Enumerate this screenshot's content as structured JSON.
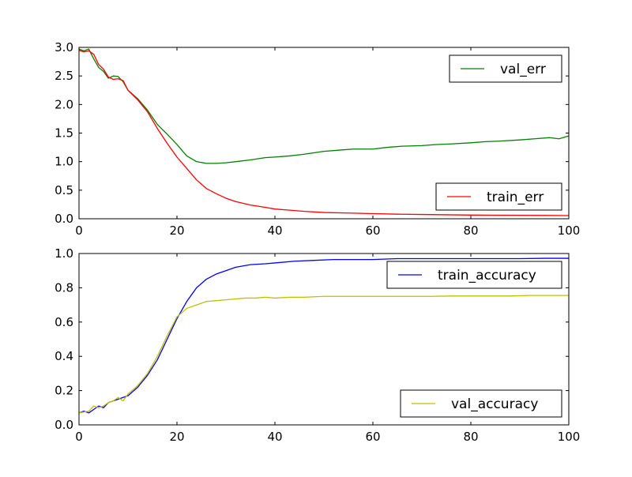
{
  "chart_data": [
    {
      "type": "line",
      "title": "",
      "xlabel": "",
      "ylabel": "",
      "xlim": [
        0,
        100
      ],
      "ylim": [
        0,
        3.0
      ],
      "xticks": [
        0,
        20,
        40,
        60,
        80,
        100
      ],
      "xtick_labels": [
        "0",
        "20",
        "40",
        "60",
        "80",
        "100"
      ],
      "yticks": [
        0,
        0.5,
        1.0,
        1.5,
        2.0,
        2.5,
        3.0
      ],
      "ytick_labels": [
        "0.0",
        "0.5",
        "1.0",
        "1.5",
        "2.0",
        "2.5",
        "3.0"
      ],
      "grid": false,
      "series": [
        {
          "name": "val_err",
          "color": "#008000",
          "legend_position": "top-right",
          "points": [
            [
              0,
              2.97
            ],
            [
              1,
              2.94
            ],
            [
              2,
              2.97
            ],
            [
              3,
              2.8
            ],
            [
              4,
              2.65
            ],
            [
              5,
              2.58
            ],
            [
              6,
              2.46
            ],
            [
              7,
              2.5
            ],
            [
              8,
              2.49
            ],
            [
              9,
              2.4
            ],
            [
              10,
              2.25
            ],
            [
              12,
              2.1
            ],
            [
              14,
              1.9
            ],
            [
              16,
              1.65
            ],
            [
              18,
              1.48
            ],
            [
              20,
              1.3
            ],
            [
              22,
              1.1
            ],
            [
              24,
              1.0
            ],
            [
              26,
              0.97
            ],
            [
              28,
              0.97
            ],
            [
              30,
              0.98
            ],
            [
              32,
              1.0
            ],
            [
              35,
              1.03
            ],
            [
              38,
              1.07
            ],
            [
              40,
              1.08
            ],
            [
              43,
              1.1
            ],
            [
              46,
              1.13
            ],
            [
              50,
              1.18
            ],
            [
              53,
              1.2
            ],
            [
              56,
              1.22
            ],
            [
              60,
              1.22
            ],
            [
              63,
              1.25
            ],
            [
              66,
              1.27
            ],
            [
              70,
              1.28
            ],
            [
              73,
              1.3
            ],
            [
              76,
              1.31
            ],
            [
              80,
              1.33
            ],
            [
              83,
              1.35
            ],
            [
              86,
              1.36
            ],
            [
              90,
              1.38
            ],
            [
              93,
              1.4
            ],
            [
              96,
              1.42
            ],
            [
              98,
              1.4
            ],
            [
              100,
              1.45
            ]
          ]
        },
        {
          "name": "train_err",
          "color": "#ff0000",
          "legend_position": "bottom-right",
          "points": [
            [
              0,
              2.95
            ],
            [
              1,
              2.92
            ],
            [
              2,
              2.94
            ],
            [
              3,
              2.88
            ],
            [
              4,
              2.7
            ],
            [
              5,
              2.62
            ],
            [
              6,
              2.48
            ],
            [
              7,
              2.44
            ],
            [
              8,
              2.45
            ],
            [
              9,
              2.42
            ],
            [
              10,
              2.25
            ],
            [
              12,
              2.08
            ],
            [
              14,
              1.87
            ],
            [
              16,
              1.58
            ],
            [
              18,
              1.32
            ],
            [
              20,
              1.08
            ],
            [
              22,
              0.88
            ],
            [
              24,
              0.68
            ],
            [
              26,
              0.53
            ],
            [
              28,
              0.44
            ],
            [
              30,
              0.36
            ],
            [
              32,
              0.3
            ],
            [
              35,
              0.24
            ],
            [
              38,
              0.2
            ],
            [
              40,
              0.17
            ],
            [
              43,
              0.15
            ],
            [
              46,
              0.13
            ],
            [
              50,
              0.11
            ],
            [
              55,
              0.1
            ],
            [
              60,
              0.09
            ],
            [
              65,
              0.08
            ],
            [
              70,
              0.075
            ],
            [
              75,
              0.07
            ],
            [
              80,
              0.065
            ],
            [
              85,
              0.062
            ],
            [
              90,
              0.06
            ],
            [
              95,
              0.058
            ],
            [
              100,
              0.055
            ]
          ]
        }
      ]
    },
    {
      "type": "line",
      "title": "",
      "xlabel": "",
      "ylabel": "",
      "xlim": [
        0,
        100
      ],
      "ylim": [
        0,
        1.0
      ],
      "xticks": [
        0,
        20,
        40,
        60,
        80,
        100
      ],
      "xtick_labels": [
        "0",
        "20",
        "40",
        "60",
        "80",
        "100"
      ],
      "yticks": [
        0,
        0.2,
        0.4,
        0.6,
        0.8,
        1.0
      ],
      "ytick_labels": [
        "0.0",
        "0.2",
        "0.4",
        "0.6",
        "0.8",
        "1.0"
      ],
      "grid": false,
      "series": [
        {
          "name": "train_accuracy",
          "color": "#0000ff",
          "legend_position": "top-right",
          "points": [
            [
              0,
              0.07
            ],
            [
              1,
              0.08
            ],
            [
              2,
              0.07
            ],
            [
              3,
              0.09
            ],
            [
              4,
              0.11
            ],
            [
              5,
              0.1
            ],
            [
              6,
              0.13
            ],
            [
              7,
              0.14
            ],
            [
              8,
              0.15
            ],
            [
              9,
              0.16
            ],
            [
              10,
              0.17
            ],
            [
              12,
              0.22
            ],
            [
              14,
              0.29
            ],
            [
              16,
              0.38
            ],
            [
              18,
              0.5
            ],
            [
              20,
              0.62
            ],
            [
              22,
              0.72
            ],
            [
              24,
              0.8
            ],
            [
              26,
              0.85
            ],
            [
              28,
              0.88
            ],
            [
              30,
              0.9
            ],
            [
              32,
              0.92
            ],
            [
              35,
              0.935
            ],
            [
              38,
              0.94
            ],
            [
              40,
              0.945
            ],
            [
              44,
              0.955
            ],
            [
              48,
              0.96
            ],
            [
              52,
              0.965
            ],
            [
              56,
              0.965
            ],
            [
              60,
              0.965
            ],
            [
              65,
              0.97
            ],
            [
              70,
              0.97
            ],
            [
              75,
              0.97
            ],
            [
              80,
              0.97
            ],
            [
              85,
              0.97
            ],
            [
              90,
              0.97
            ],
            [
              95,
              0.972
            ],
            [
              100,
              0.972
            ]
          ]
        },
        {
          "name": "val_accuracy",
          "color": "#bfbf00",
          "legend_position": "bottom-right",
          "points": [
            [
              0,
              0.07
            ],
            [
              1,
              0.075
            ],
            [
              2,
              0.08
            ],
            [
              3,
              0.11
            ],
            [
              4,
              0.1
            ],
            [
              5,
              0.11
            ],
            [
              6,
              0.13
            ],
            [
              7,
              0.14
            ],
            [
              8,
              0.16
            ],
            [
              9,
              0.14
            ],
            [
              10,
              0.18
            ],
            [
              12,
              0.23
            ],
            [
              14,
              0.3
            ],
            [
              16,
              0.4
            ],
            [
              18,
              0.52
            ],
            [
              20,
              0.63
            ],
            [
              22,
              0.68
            ],
            [
              24,
              0.7
            ],
            [
              26,
              0.72
            ],
            [
              28,
              0.725
            ],
            [
              30,
              0.73
            ],
            [
              32,
              0.735
            ],
            [
              34,
              0.74
            ],
            [
              36,
              0.74
            ],
            [
              38,
              0.745
            ],
            [
              40,
              0.74
            ],
            [
              43,
              0.745
            ],
            [
              46,
              0.745
            ],
            [
              50,
              0.75
            ],
            [
              53,
              0.75
            ],
            [
              56,
              0.75
            ],
            [
              60,
              0.75
            ],
            [
              64,
              0.75
            ],
            [
              68,
              0.75
            ],
            [
              72,
              0.75
            ],
            [
              76,
              0.752
            ],
            [
              80,
              0.752
            ],
            [
              84,
              0.752
            ],
            [
              88,
              0.752
            ],
            [
              92,
              0.755
            ],
            [
              96,
              0.755
            ],
            [
              100,
              0.755
            ]
          ]
        }
      ]
    }
  ]
}
